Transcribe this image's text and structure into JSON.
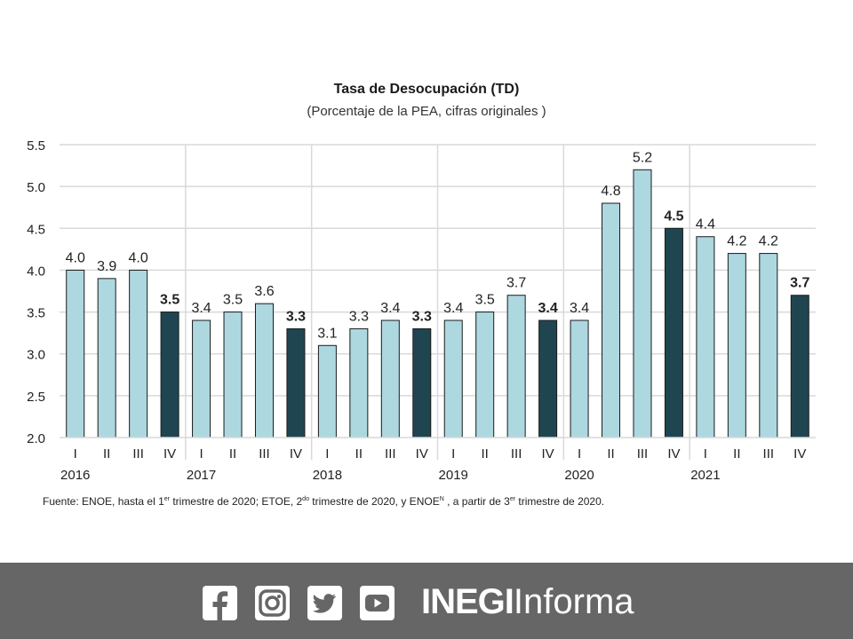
{
  "chart_data": {
    "type": "bar",
    "title": "Tasa de Desocupación (TD)",
    "subtitle": "(Porcentaje de la PEA, cifras originales )",
    "xlabel": "",
    "ylabel": "",
    "ylim": [
      2.0,
      5.5
    ],
    "yticks": [
      "2.0",
      "2.5",
      "3.0",
      "3.5",
      "4.0",
      "4.5",
      "5.0",
      "5.5"
    ],
    "grid": true,
    "colors": {
      "quarter": "#add8e0",
      "q4": "#1f4650",
      "outline": "#1a1a1a",
      "grid": "#d9d9d9"
    },
    "categories": [
      {
        "quarter": "I",
        "year": "2016"
      },
      {
        "quarter": "II",
        "year": ""
      },
      {
        "quarter": "III",
        "year": ""
      },
      {
        "quarter": "IV",
        "year": ""
      },
      {
        "quarter": "I",
        "year": "2017"
      },
      {
        "quarter": "II",
        "year": ""
      },
      {
        "quarter": "III",
        "year": ""
      },
      {
        "quarter": "IV",
        "year": ""
      },
      {
        "quarter": "I",
        "year": "2018"
      },
      {
        "quarter": "II",
        "year": ""
      },
      {
        "quarter": "III",
        "year": ""
      },
      {
        "quarter": "IV",
        "year": ""
      },
      {
        "quarter": "I",
        "year": "2019"
      },
      {
        "quarter": "II",
        "year": ""
      },
      {
        "quarter": "III",
        "year": ""
      },
      {
        "quarter": "IV",
        "year": ""
      },
      {
        "quarter": "I",
        "year": "2020"
      },
      {
        "quarter": "II",
        "year": ""
      },
      {
        "quarter": "III",
        "year": ""
      },
      {
        "quarter": "IV",
        "year": ""
      },
      {
        "quarter": "I",
        "year": "2021"
      },
      {
        "quarter": "II",
        "year": ""
      },
      {
        "quarter": "III",
        "year": ""
      },
      {
        "quarter": "IV",
        "year": ""
      }
    ],
    "values": [
      4.0,
      3.9,
      4.0,
      3.5,
      3.4,
      3.5,
      3.6,
      3.3,
      3.1,
      3.3,
      3.4,
      3.3,
      3.4,
      3.5,
      3.7,
      3.4,
      3.4,
      4.8,
      5.2,
      4.5,
      4.4,
      4.2,
      4.2,
      3.7
    ],
    "labels": [
      "4.0",
      "3.9",
      "4.0",
      "3.5",
      "3.4",
      "3.5",
      "3.6",
      "3.3",
      "3.1",
      "3.3",
      "3.4",
      "3.3",
      "3.4",
      "3.5",
      "3.7",
      "3.4",
      "3.4",
      "4.8",
      "5.2",
      "4.5",
      "4.4",
      "4.2",
      "4.2",
      "3.7"
    ]
  },
  "source_note": {
    "part1": "Fuente: ENOE, hasta el 1",
    "sup1": "er",
    "part2": " trimestre de 2020; ETOE, 2",
    "sup2": "do",
    "part3": " trimestre de 2020, y ENOE",
    "sup3": "N",
    "part4": " , a partir de 3",
    "sup4": "er",
    "part5": " trimestre de 2020."
  },
  "footer": {
    "icons": [
      "facebook-icon",
      "instagram-icon",
      "twitter-icon",
      "youtube-icon"
    ],
    "brand_bold": "INEGI",
    "brand_light": "Informa"
  }
}
